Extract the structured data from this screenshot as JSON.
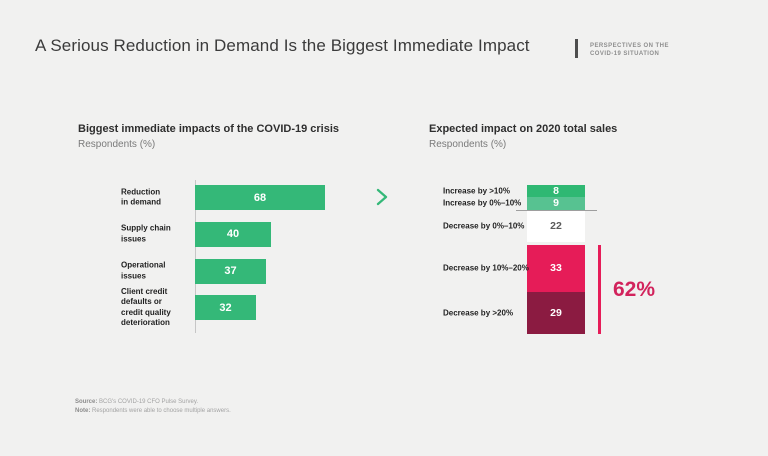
{
  "header": {
    "title": "A Serious Reduction in Demand Is the Biggest Immediate Impact",
    "eyebrow_line1": "PERSPECTIVES ON THE",
    "eyebrow_line2": "COVID-19 SITUATION"
  },
  "colors": {
    "background": "#f1f1f0",
    "green": "#34b878",
    "green_light": "#57c291",
    "white": "#ffffff",
    "pink": "#e61c58",
    "maroon": "#8b1b41",
    "pct_text": "#d2235c"
  },
  "left_chart": {
    "title": "Biggest immediate impacts of the COVID-19 crisis",
    "subtitle": "Respondents (%)",
    "bars": [
      {
        "label": "Reduction\nin demand",
        "value": 68
      },
      {
        "label": "Supply chain\nissues",
        "value": 40
      },
      {
        "label": "Operational\nissues",
        "value": 37
      },
      {
        "label": "Client credit\ndefaults or\ncredit quality\ndeterioration",
        "value": 32
      }
    ]
  },
  "right_chart": {
    "title": "Expected impact on 2020 total sales",
    "subtitle": "Respondents (%)",
    "segments": [
      {
        "label": "Increase by >10%",
        "value": 8,
        "color": "#2fb873",
        "text_color": "#ffffff"
      },
      {
        "label": "Increase by 0%–10%",
        "value": 9,
        "color": "#57c291",
        "text_color": "#ffffff"
      },
      {
        "label": "Decrease by 0%–10%",
        "value": 22,
        "color": "#ffffff",
        "text_color": "#5a5a5a"
      },
      {
        "label": "Decrease by 10%–20%",
        "value": 33,
        "color": "#e61c58",
        "text_color": "#ffffff"
      },
      {
        "label": "Decrease by >20%",
        "value": 29,
        "color": "#8b1b41",
        "text_color": "#ffffff"
      }
    ],
    "bracket_label": "62%"
  },
  "footer": {
    "source_label": "Source:",
    "source_text": "BCG's COVID-19 CFO Pulse Survey.",
    "note_label": "Note:",
    "note_text": "Respondents were able to choose multiple answers."
  },
  "chart_data": [
    {
      "type": "bar",
      "orientation": "horizontal",
      "title": "Biggest immediate impacts of the COVID-19 crisis",
      "xlabel": "Respondents (%)",
      "categories": [
        "Reduction in demand",
        "Supply chain issues",
        "Operational issues",
        "Client credit defaults or credit quality deterioration"
      ],
      "values": [
        68,
        40,
        37,
        32
      ],
      "xlim": [
        0,
        75
      ],
      "grid": false,
      "bar_color": "#34b878",
      "value_labels": "inside-center"
    },
    {
      "type": "bar",
      "orientation": "vertical-stacked",
      "title": "Expected impact on 2020 total sales",
      "xlabel": "Respondents (%)",
      "categories": [
        "Increase by >10%",
        "Increase by 0%–10%",
        "Decrease by 0%–10%",
        "Decrease by 10%–20%",
        "Decrease by >20%"
      ],
      "values": [
        8,
        9,
        22,
        33,
        29
      ],
      "grid": false,
      "segment_colors": [
        "#2fb873",
        "#57c291",
        "#ffffff",
        "#e61c58",
        "#8b1b41"
      ],
      "annotation": {
        "label": "62%",
        "covers": [
          "Decrease by 10%–20%",
          "Decrease by >20%"
        ]
      }
    }
  ]
}
